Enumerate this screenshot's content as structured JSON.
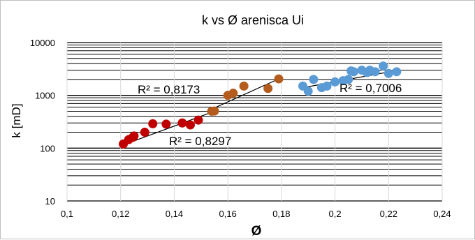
{
  "chart_data": {
    "type": "scatter",
    "title": "k vs Ø arenisca Ui",
    "xlabel": "Ø",
    "ylabel": "k [mD]",
    "xlim": [
      0.1,
      0.24
    ],
    "ylim": [
      10,
      10000
    ],
    "yscale": "log",
    "grid": true,
    "x_ticks": [
      "0,1",
      "0,12",
      "0,14",
      "0,16",
      "0,18",
      "0,2",
      "0,22",
      "0,24"
    ],
    "y_ticks": [
      "10",
      "100",
      "1000",
      "10000"
    ],
    "series": [
      {
        "color": "#c00000",
        "points": [
          [
            0.121,
            120
          ],
          [
            0.123,
            145
          ],
          [
            0.1245,
            160
          ],
          [
            0.125,
            170
          ],
          [
            0.129,
            200
          ],
          [
            0.132,
            290
          ],
          [
            0.137,
            285
          ],
          [
            0.143,
            300
          ],
          [
            0.146,
            275
          ],
          [
            0.149,
            340
          ]
        ],
        "trendline": [
          [
            0.121,
            115
          ],
          [
            0.155,
            500
          ]
        ],
        "r2": "R² = 0,8297"
      },
      {
        "color": "#b35c1e",
        "points": [
          [
            0.154,
            500
          ],
          [
            0.155,
            505
          ],
          [
            0.16,
            1000
          ],
          [
            0.162,
            1100
          ],
          [
            0.166,
            1500
          ],
          [
            0.175,
            1350
          ],
          [
            0.179,
            2050
          ]
        ],
        "trendline": [
          [
            0.153,
            520
          ],
          [
            0.179,
            2050
          ]
        ],
        "r2": "R² = 0,8173"
      },
      {
        "color": "#5b9bd5",
        "points": [
          [
            0.188,
            1500
          ],
          [
            0.19,
            1200
          ],
          [
            0.192,
            2000
          ],
          [
            0.195,
            1400
          ],
          [
            0.197,
            1500
          ],
          [
            0.2,
            1800
          ],
          [
            0.203,
            1900
          ],
          [
            0.205,
            2000
          ],
          [
            0.206,
            2900
          ],
          [
            0.207,
            2800
          ],
          [
            0.21,
            3000
          ],
          [
            0.212,
            2700
          ],
          [
            0.213,
            3000
          ],
          [
            0.215,
            2800
          ],
          [
            0.218,
            3600
          ],
          [
            0.22,
            2600
          ],
          [
            0.223,
            2800
          ]
        ],
        "trendline": [
          [
            0.188,
            1400
          ],
          [
            0.223,
            2950
          ]
        ],
        "r2": "R² = 0,7006"
      }
    ]
  }
}
